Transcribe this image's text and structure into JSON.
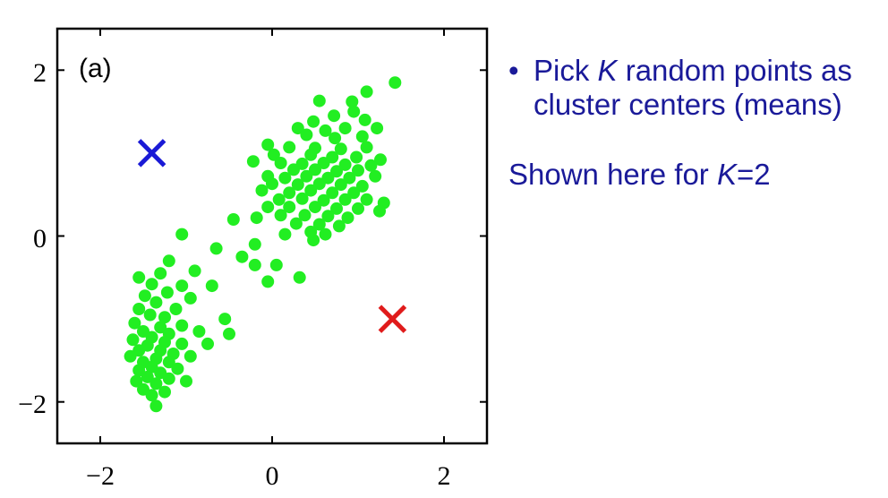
{
  "chart_data": {
    "type": "scatter",
    "panel_label": "(a)",
    "xlim": [
      -2.5,
      2.5
    ],
    "ylim": [
      -2.5,
      2.5
    ],
    "xticks": [
      -2,
      0,
      2
    ],
    "yticks": [
      -2,
      0,
      2
    ],
    "xtick_labels": [
      "−2",
      "0",
      "2"
    ],
    "ytick_labels": [
      "−2",
      "0",
      "2"
    ],
    "grid": false,
    "series": [
      {
        "kind": "points",
        "color": "#22ee22",
        "points": [
          [
            1.43,
            1.85
          ],
          [
            1.1,
            1.74
          ],
          [
            0.93,
            1.62
          ],
          [
            0.55,
            1.63
          ],
          [
            0.95,
            1.5
          ],
          [
            0.72,
            1.45
          ],
          [
            0.48,
            1.38
          ],
          [
            1.08,
            1.4
          ],
          [
            0.3,
            1.3
          ],
          [
            0.62,
            1.27
          ],
          [
            0.85,
            1.3
          ],
          [
            1.22,
            1.3
          ],
          [
            0.4,
            1.22
          ],
          [
            0.73,
            1.18
          ],
          [
            1.05,
            1.2
          ],
          [
            -0.05,
            1.1
          ],
          [
            0.2,
            1.07
          ],
          [
            0.5,
            1.06
          ],
          [
            0.8,
            1.05
          ],
          [
            1.1,
            1.07
          ],
          [
            0.02,
            0.98
          ],
          [
            0.45,
            0.98
          ],
          [
            0.7,
            0.95
          ],
          [
            0.98,
            0.95
          ],
          [
            1.26,
            0.92
          ],
          [
            -0.22,
            0.9
          ],
          [
            0.1,
            0.88
          ],
          [
            0.35,
            0.87
          ],
          [
            0.6,
            0.88
          ],
          [
            0.85,
            0.86
          ],
          [
            1.15,
            0.85
          ],
          [
            0.25,
            0.8
          ],
          [
            0.5,
            0.8
          ],
          [
            0.75,
            0.78
          ],
          [
            1.0,
            0.79
          ],
          [
            -0.05,
            0.72
          ],
          [
            0.15,
            0.7
          ],
          [
            0.4,
            0.72
          ],
          [
            0.65,
            0.7
          ],
          [
            0.9,
            0.7
          ],
          [
            1.2,
            0.72
          ],
          [
            0.0,
            0.63
          ],
          [
            0.3,
            0.62
          ],
          [
            0.55,
            0.63
          ],
          [
            0.8,
            0.62
          ],
          [
            1.05,
            0.6
          ],
          [
            -0.12,
            0.55
          ],
          [
            0.2,
            0.52
          ],
          [
            0.45,
            0.55
          ],
          [
            0.7,
            0.52
          ],
          [
            0.95,
            0.52
          ],
          [
            0.08,
            0.44
          ],
          [
            0.35,
            0.45
          ],
          [
            0.6,
            0.43
          ],
          [
            0.85,
            0.44
          ],
          [
            1.1,
            0.44
          ],
          [
            1.3,
            0.4
          ],
          [
            -0.05,
            0.35
          ],
          [
            0.2,
            0.35
          ],
          [
            0.5,
            0.35
          ],
          [
            0.75,
            0.33
          ],
          [
            1.0,
            0.33
          ],
          [
            1.25,
            0.3
          ],
          [
            0.1,
            0.25
          ],
          [
            0.38,
            0.25
          ],
          [
            0.65,
            0.24
          ],
          [
            0.88,
            0.22
          ],
          [
            -0.18,
            0.22
          ],
          [
            0.28,
            0.15
          ],
          [
            0.55,
            0.14
          ],
          [
            0.78,
            0.12
          ],
          [
            -0.45,
            0.2
          ],
          [
            0.45,
            0.05
          ],
          [
            0.62,
            0.02
          ],
          [
            0.15,
            0.02
          ],
          [
            -0.2,
            -0.1
          ],
          [
            0.48,
            -0.05
          ],
          [
            -0.35,
            -0.25
          ],
          [
            -0.2,
            -0.35
          ],
          [
            0.05,
            -0.35
          ],
          [
            -0.05,
            -0.55
          ],
          [
            0.32,
            -0.5
          ],
          [
            -0.65,
            -0.15
          ],
          [
            -1.05,
            0.02
          ],
          [
            -1.2,
            -0.3
          ],
          [
            -0.9,
            -0.42
          ],
          [
            -1.3,
            -0.45
          ],
          [
            -0.7,
            -0.6
          ],
          [
            -1.55,
            -0.5
          ],
          [
            -1.4,
            -0.58
          ],
          [
            -1.05,
            -0.6
          ],
          [
            -1.22,
            -0.68
          ],
          [
            -1.48,
            -0.72
          ],
          [
            -0.95,
            -0.75
          ],
          [
            -1.35,
            -0.8
          ],
          [
            -1.55,
            -0.88
          ],
          [
            -1.12,
            -0.88
          ],
          [
            -1.42,
            -0.95
          ],
          [
            -1.25,
            -0.98
          ],
          [
            -1.6,
            -1.05
          ],
          [
            -1.3,
            -1.1
          ],
          [
            -1.05,
            -1.08
          ],
          [
            -1.5,
            -1.15
          ],
          [
            -1.2,
            -1.18
          ],
          [
            -1.4,
            -1.22
          ],
          [
            -1.62,
            -1.25
          ],
          [
            -0.85,
            -1.15
          ],
          [
            -1.25,
            -1.28
          ],
          [
            -1.05,
            -1.3
          ],
          [
            -1.45,
            -1.32
          ],
          [
            -1.55,
            -1.38
          ],
          [
            -1.3,
            -1.38
          ],
          [
            -1.15,
            -1.42
          ],
          [
            -1.65,
            -1.45
          ],
          [
            -0.95,
            -1.45
          ],
          [
            -1.35,
            -1.48
          ],
          [
            -1.5,
            -1.52
          ],
          [
            -1.2,
            -1.52
          ],
          [
            -1.4,
            -1.58
          ],
          [
            -1.1,
            -1.6
          ],
          [
            -1.55,
            -1.62
          ],
          [
            -1.3,
            -1.65
          ],
          [
            -1.45,
            -1.7
          ],
          [
            -1.2,
            -1.72
          ],
          [
            -1.58,
            -1.75
          ],
          [
            -1.35,
            -1.78
          ],
          [
            -1.5,
            -1.85
          ],
          [
            -1.25,
            -1.88
          ],
          [
            -1.4,
            -1.92
          ],
          [
            -0.75,
            -1.3
          ],
          [
            -1.0,
            -1.75
          ],
          [
            -1.35,
            -2.05
          ],
          [
            -0.5,
            -1.18
          ],
          [
            -0.55,
            -1.0
          ]
        ]
      },
      {
        "kind": "cross",
        "color": "#1a1ad6",
        "x": -1.4,
        "y": 1.0
      },
      {
        "kind": "cross",
        "color": "#e01b1b",
        "x": 1.4,
        "y": -1.0
      }
    ]
  },
  "slide": {
    "bullet_symbol": "•",
    "bullet_pre": "Pick ",
    "bullet_k": "K",
    "bullet_post": " random points as cluster centers (means)",
    "shown_pre": "Shown here for ",
    "shown_k": "K",
    "shown_post": "=2"
  }
}
